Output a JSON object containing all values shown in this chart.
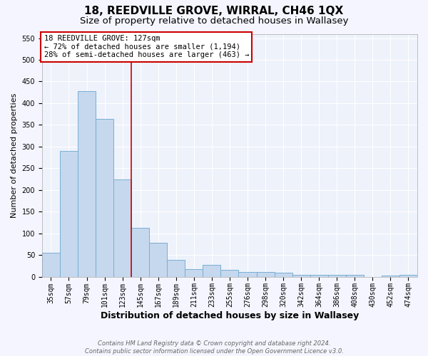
{
  "title": "18, REEDVILLE GROVE, WIRRAL, CH46 1QX",
  "subtitle": "Size of property relative to detached houses in Wallasey",
  "xlabel": "Distribution of detached houses by size in Wallasey",
  "ylabel": "Number of detached properties",
  "categories": [
    "35sqm",
    "57sqm",
    "79sqm",
    "101sqm",
    "123sqm",
    "145sqm",
    "167sqm",
    "189sqm",
    "211sqm",
    "233sqm",
    "255sqm",
    "276sqm",
    "298sqm",
    "320sqm",
    "342sqm",
    "364sqm",
    "386sqm",
    "408sqm",
    "430sqm",
    "452sqm",
    "474sqm"
  ],
  "values": [
    55,
    290,
    428,
    363,
    224,
    113,
    78,
    38,
    17,
    27,
    16,
    10,
    10,
    9,
    5,
    5,
    5,
    5,
    0,
    3,
    4
  ],
  "bar_color": "#c5d8ee",
  "bar_edge_color": "#7aaed4",
  "background_color": "#eef2fb",
  "grid_color": "#ffffff",
  "annotation_box_text": "18 REEDVILLE GROVE: 127sqm\n← 72% of detached houses are smaller (1,194)\n28% of semi-detached houses are larger (463) →",
  "annotation_box_color": "#ffffff",
  "annotation_box_edge_color": "#cc0000",
  "red_line_x": 4.5,
  "ylim": [
    0,
    560
  ],
  "yticks": [
    0,
    50,
    100,
    150,
    200,
    250,
    300,
    350,
    400,
    450,
    500,
    550
  ],
  "footnote": "Contains HM Land Registry data © Crown copyright and database right 2024.\nContains public sector information licensed under the Open Government Licence v3.0.",
  "title_fontsize": 11,
  "subtitle_fontsize": 9.5,
  "xlabel_fontsize": 9,
  "ylabel_fontsize": 8,
  "tick_fontsize": 7,
  "annotation_fontsize": 7.5,
  "footnote_fontsize": 6
}
